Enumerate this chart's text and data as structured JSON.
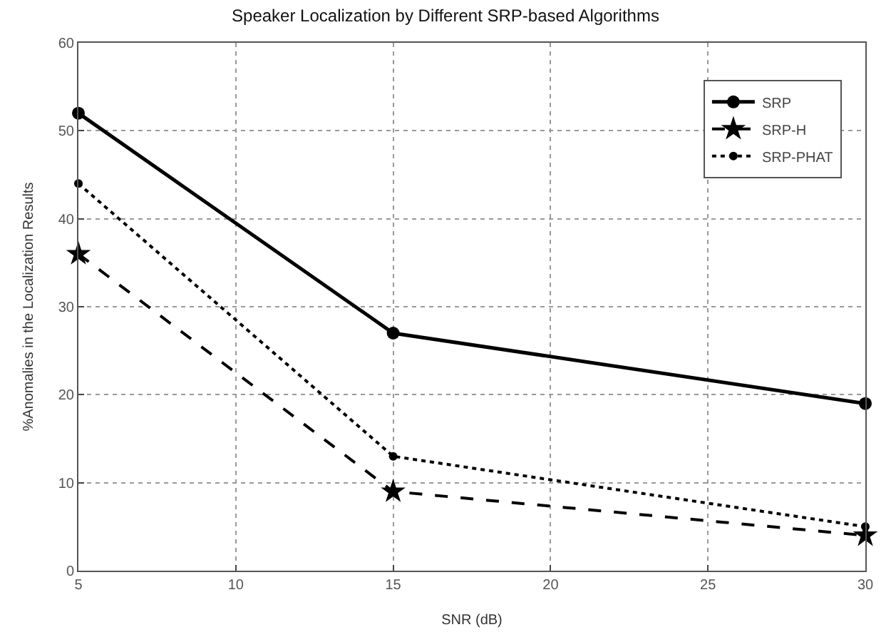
{
  "chart_data": {
    "type": "line",
    "title": "Speaker Localization by Different SRP-based Algorithms",
    "xlabel": "SNR (dB)",
    "ylabel": "%Anomalies in the Localization Results",
    "x": [
      5,
      15,
      30
    ],
    "series": [
      {
        "name": "SRP",
        "color": "#000000",
        "values": [
          52,
          27,
          19
        ],
        "marker": "circle",
        "line_style": "solid"
      },
      {
        "name": "SRP-H",
        "color": "#000000",
        "values": [
          36,
          9,
          4
        ],
        "marker": "star",
        "line_style": "dashed"
      },
      {
        "name": "SRP-PHAT",
        "color": "#000000",
        "values": [
          44,
          13,
          5
        ],
        "marker": "circle",
        "line_style": "dotted"
      }
    ],
    "xlim": [
      5,
      30
    ],
    "xticks": [
      5,
      10,
      15,
      20,
      25,
      30
    ],
    "ylim": [
      0,
      60
    ],
    "yticks": [
      0,
      10,
      20,
      30,
      40,
      50,
      60
    ],
    "grid": true,
    "legend": "top right"
  }
}
